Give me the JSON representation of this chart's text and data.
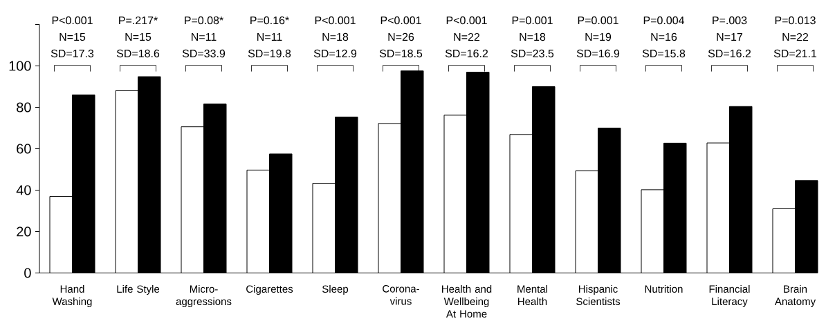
{
  "chart_data": {
    "type": "bar",
    "categories": [
      "Hand Washing",
      "Life Style",
      "Micro-aggressions",
      "Cigarettes",
      "Sleep",
      "Corona-virus",
      "Health and Wellbeing At Home",
      "Mental Health",
      "Hispanic Scientists",
      "Nutrition",
      "Financial Literacy",
      "Brain Anatomy"
    ],
    "series": [
      {
        "color": "#ffffff",
        "values": [
          37,
          88,
          70.6,
          49.7,
          43.3,
          72.2,
          76.2,
          66.9,
          49.3,
          40.2,
          62.8,
          31
        ]
      },
      {
        "color": "#000000",
        "values": [
          86,
          94.8,
          81.6,
          57.5,
          75.3,
          97.6,
          97,
          90,
          70,
          62.7,
          80.4,
          44.6
        ]
      }
    ],
    "ylim": [
      0,
      120
    ],
    "yticks": [
      0,
      20,
      40,
      60,
      80,
      100,
      {
        "value": 120,
        "label": null
      }
    ],
    "grid": false,
    "annotations": [
      "P<0.001",
      "N=15",
      "SD=17.3",
      "P=.217*",
      "N=15",
      "SD=18.6",
      "P=0.08*",
      "N=11",
      "SD=33.9",
      "P=0.16*",
      "N=11",
      "SD=19.8",
      "P<0.001",
      "N=18",
      "SD=12.9",
      "P<0.001",
      "N=26",
      "SD=18.5",
      "P<0.001",
      "N=22",
      "SD=16.2",
      "P=0.001",
      "N=18",
      "SD=23.5",
      "P=0.001",
      "N=19",
      "SD=16.9",
      "P=0.004",
      "N=16",
      "SD=15.8",
      "P=.003",
      "N=17",
      "SD=16.2",
      "P=0.013",
      "N=22",
      "SD=21.1"
    ]
  }
}
